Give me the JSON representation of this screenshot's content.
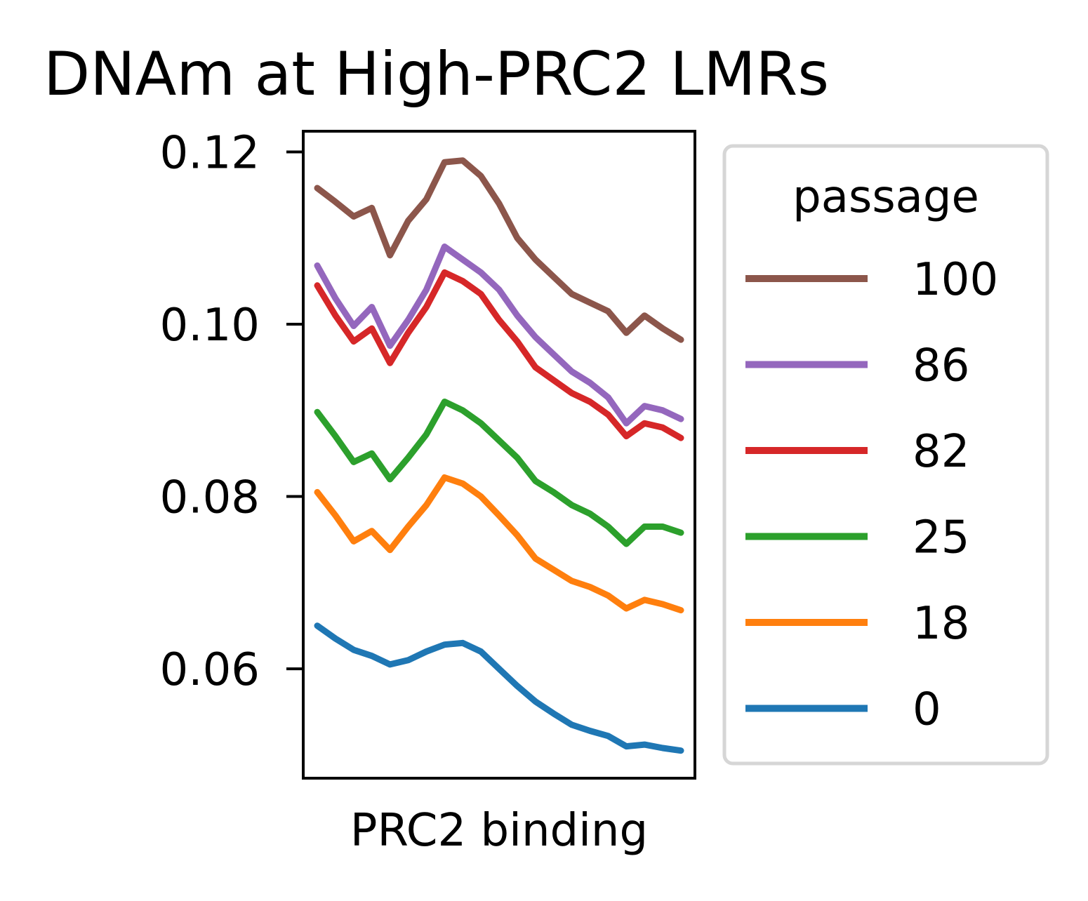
{
  "chart_data": {
    "type": "line",
    "title": "DNAm at High-PRC2 LMRs",
    "xlabel": "PRC2 binding",
    "ylabel": "",
    "ylim": [
      0.0473,
      0.1224
    ],
    "yticks": [
      "0.12",
      "0.10",
      "0.08",
      "0.06"
    ],
    "yticks_values": [
      0.12,
      0.1,
      0.08,
      0.06
    ],
    "x_ticks_shown": false,
    "x": [
      0,
      5,
      10,
      15,
      20,
      25,
      30,
      35,
      40,
      45,
      50,
      55,
      60,
      65,
      70,
      75,
      80,
      85,
      90,
      95,
      100
    ],
    "legend": {
      "title": "passage",
      "placement": "right-outside"
    },
    "series": [
      {
        "name": "100",
        "color": "#8c564b",
        "values": [
          0.1158,
          0.1142,
          0.1125,
          0.1135,
          0.108,
          0.112,
          0.1145,
          0.1188,
          0.119,
          0.1172,
          0.114,
          0.11,
          0.1075,
          0.1055,
          0.1035,
          0.1025,
          0.1015,
          0.099,
          0.101,
          0.0995,
          0.0982
        ]
      },
      {
        "name": "86",
        "color": "#9467bd",
        "values": [
          0.1068,
          0.103,
          0.0998,
          0.102,
          0.0975,
          0.1005,
          0.104,
          0.109,
          0.1075,
          0.106,
          0.104,
          0.101,
          0.0985,
          0.0965,
          0.0945,
          0.0932,
          0.0915,
          0.0885,
          0.0905,
          0.09,
          0.089
        ]
      },
      {
        "name": "82",
        "color": "#d62728",
        "values": [
          0.1045,
          0.101,
          0.098,
          0.0995,
          0.0955,
          0.099,
          0.102,
          0.106,
          0.105,
          0.1035,
          0.1005,
          0.098,
          0.095,
          0.0935,
          0.092,
          0.091,
          0.0895,
          0.087,
          0.0885,
          0.088,
          0.0868
        ]
      },
      {
        "name": "25",
        "color": "#2ca02c",
        "values": [
          0.0898,
          0.087,
          0.084,
          0.085,
          0.082,
          0.0845,
          0.0872,
          0.091,
          0.09,
          0.0885,
          0.0865,
          0.0845,
          0.0818,
          0.0805,
          0.079,
          0.078,
          0.0765,
          0.0745,
          0.0765,
          0.0765,
          0.0758
        ]
      },
      {
        "name": "18",
        "color": "#ff7f0e",
        "values": [
          0.0805,
          0.0778,
          0.0748,
          0.076,
          0.0738,
          0.0765,
          0.079,
          0.0822,
          0.0815,
          0.08,
          0.0778,
          0.0755,
          0.0728,
          0.0715,
          0.0702,
          0.0695,
          0.0685,
          0.067,
          0.068,
          0.0675,
          0.0668
        ]
      },
      {
        "name": "0",
        "color": "#1f77b4",
        "values": [
          0.065,
          0.0635,
          0.0622,
          0.0615,
          0.0605,
          0.061,
          0.062,
          0.0628,
          0.063,
          0.062,
          0.06,
          0.058,
          0.0562,
          0.0548,
          0.0535,
          0.0528,
          0.0522,
          0.051,
          0.0512,
          0.0508,
          0.0505
        ]
      }
    ]
  }
}
